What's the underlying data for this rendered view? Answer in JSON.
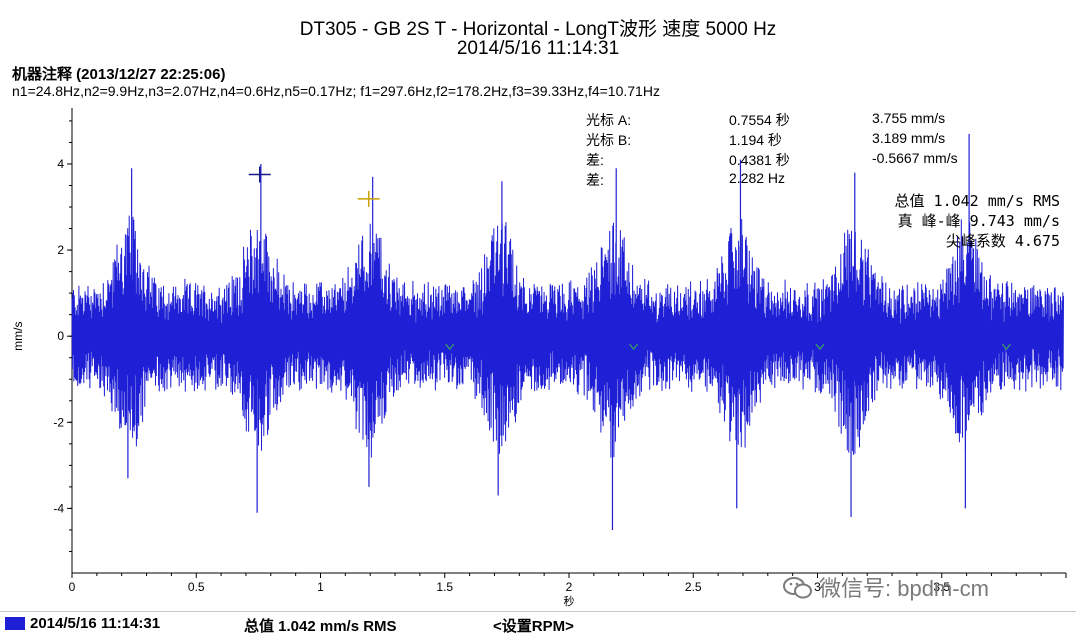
{
  "header": {
    "title_line1": "DT305 - GB 2S T - Horizontal - LongT波形 速度  5000 Hz",
    "title_line2": "2014/5/16 11:14:31"
  },
  "note": {
    "heading": "机器注释 (2013/12/27 22:25:06)",
    "text": "n1=24.8Hz,n2=9.9Hz,n3=2.07Hz,n4=0.6Hz,n5=0.17Hz; f1=297.6Hz,f2=178.2Hz,f3=39.33Hz,f4=10.71Hz"
  },
  "cursors": {
    "rows": [
      {
        "label": "光标 A:",
        "time": "0.7554 秒",
        "value": "3.755 mm/s"
      },
      {
        "label": "光标 B:",
        "time": "1.194 秒",
        "value": "3.189 mm/s"
      },
      {
        "label": "差:",
        "time": "0.4381 秒",
        "value": "-0.5667 mm/s"
      },
      {
        "label": "差:",
        "time": "2.282 Hz",
        "value": ""
      }
    ]
  },
  "stats": {
    "overall": "总值 1.042 mm/s RMS",
    "peak_to_peak": "真 峰-峰 9.743 mm/s",
    "crest_factor": "尖峰系数 4.675"
  },
  "watermark": {
    "text": "微信号: bpdm-cm"
  },
  "status_bar": {
    "date": "2014/5/16 11:14:31",
    "overall": "总值 1.042 mm/s RMS",
    "rpm_button": "<设置RPM>"
  },
  "colors": {
    "waveform": "#1f1fd6",
    "axis": "#000000",
    "cursor_a": "#1a1a8a",
    "cursor_b": "#c8a000",
    "marker": "#3aa060"
  },
  "chart_data": {
    "type": "line",
    "xlabel": "秒",
    "ylabel": "mm/s",
    "xlim": [
      0,
      4.0
    ],
    "ylim": [
      -5.5,
      5.3
    ],
    "xticks": [
      0,
      0.5,
      1,
      1.5,
      2,
      2.5,
      3,
      3.5,
      4
    ],
    "xtick_labels": [
      "0",
      "0.5",
      "1",
      "1.5",
      "2",
      "2.5",
      "3",
      "3.5",
      ""
    ],
    "yticks": [
      4,
      2,
      0,
      -2,
      -4
    ],
    "ytick_labels": [
      "4",
      "2",
      "0",
      "-2",
      "-4"
    ],
    "grid": false,
    "series": [
      {
        "burst_centers_s": [
          0.23,
          0.75,
          1.2,
          1.72,
          2.18,
          2.68,
          3.14,
          3.6
        ],
        "burst_peaks_mm_s": [
          3.9,
          4.0,
          3.7,
          3.6,
          3.9,
          4.1,
          3.8,
          4.7
        ],
        "burst_troughs_mm_s": [
          -3.3,
          -4.1,
          -3.5,
          -3.7,
          -4.5,
          -4.0,
          -4.2,
          -4.0
        ],
        "baseline_amplitude_mm_s": 1.2
      }
    ],
    "cursor_a": {
      "x": 0.7554,
      "y": 3.755
    },
    "cursor_b": {
      "x": 1.194,
      "y": 3.189
    },
    "period_markers_x": [
      1.52,
      2.26,
      3.01,
      3.76
    ]
  }
}
